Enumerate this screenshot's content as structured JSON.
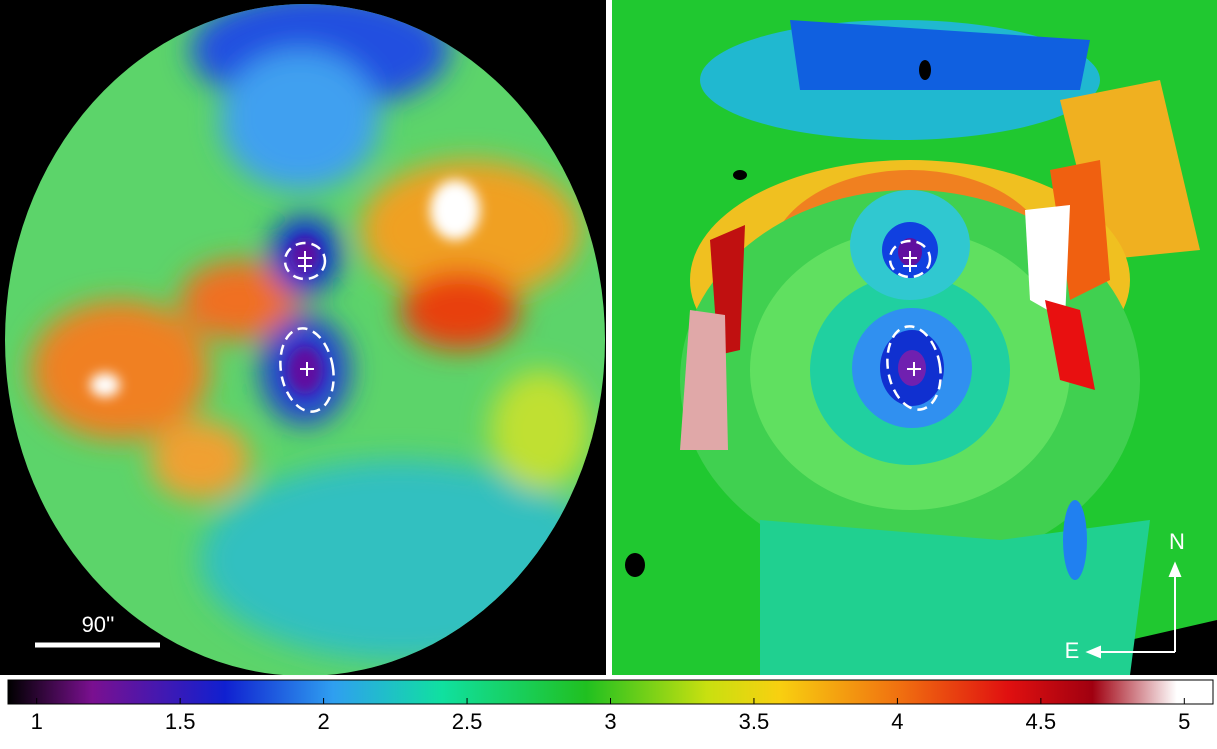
{
  "scale_bar": "90''",
  "compass": {
    "north": "N",
    "east": "E"
  },
  "colorbar": {
    "range": [
      0.9,
      5.1
    ],
    "ticks": [
      1,
      1.5,
      2,
      2.5,
      3,
      3.5,
      4,
      4.5,
      5
    ]
  }
}
